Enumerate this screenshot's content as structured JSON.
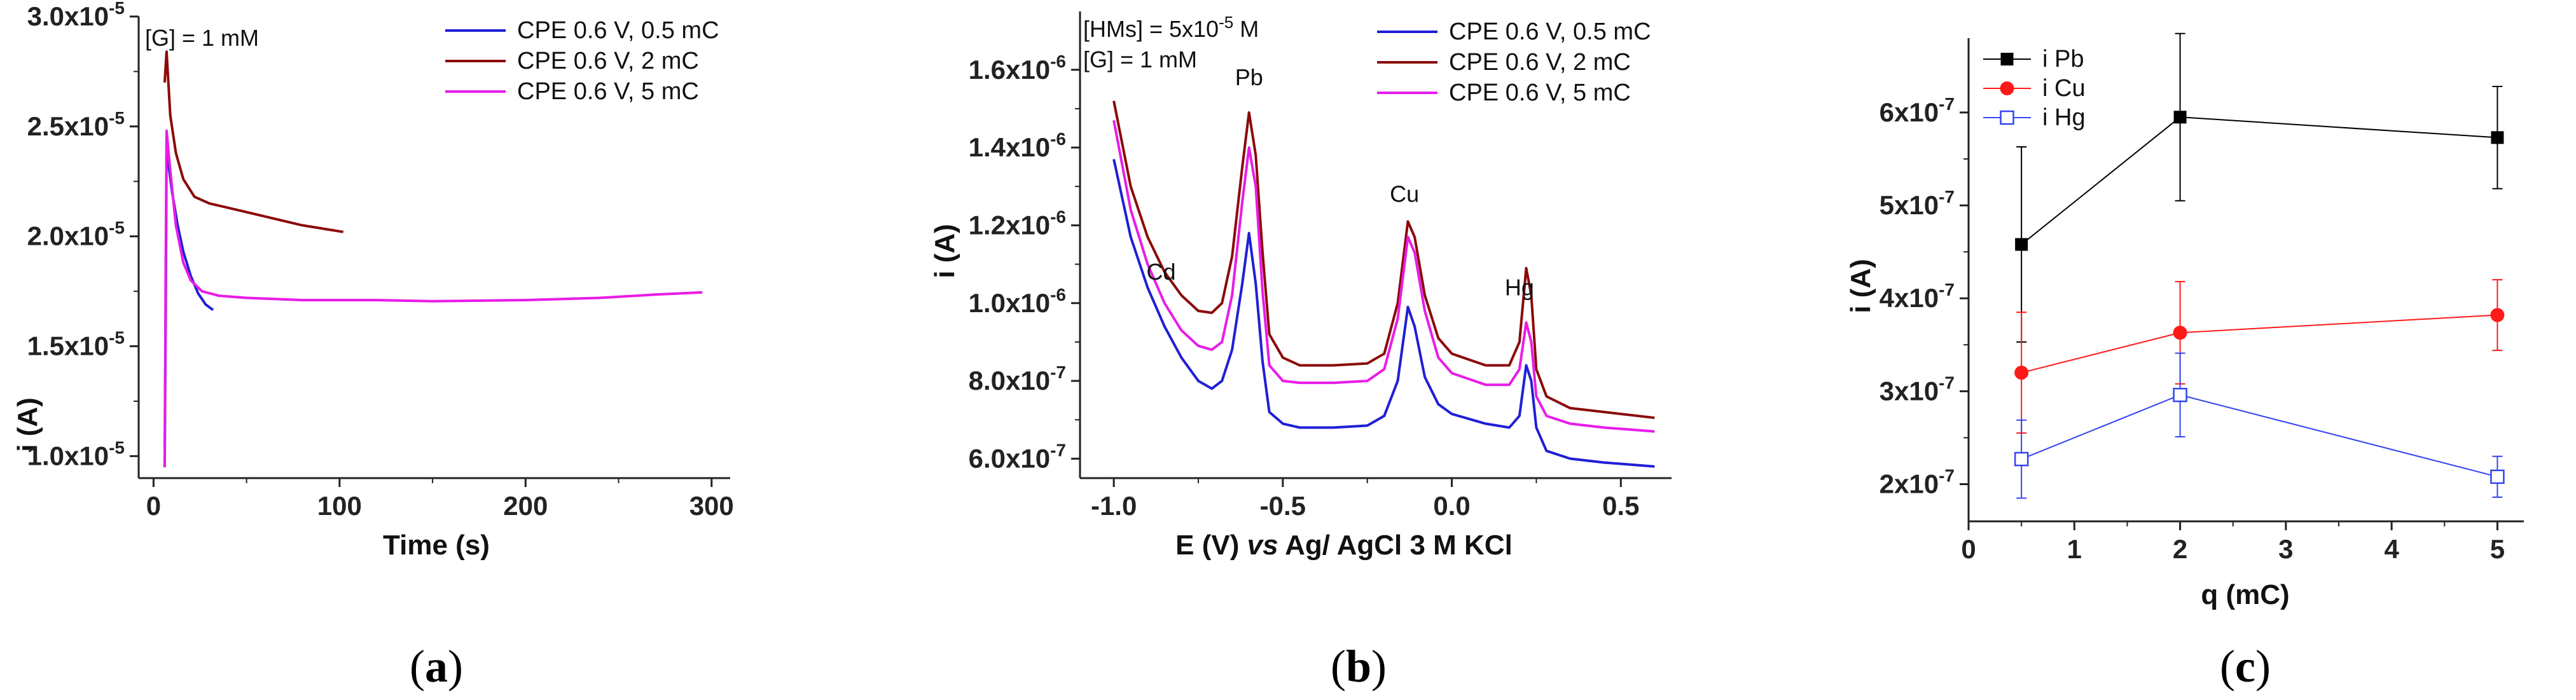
{
  "figure": {
    "panels": [
      {
        "label": "(a)",
        "letter": "a"
      },
      {
        "label": "(b)",
        "letter": "b"
      },
      {
        "label": "(c)",
        "letter": "c"
      }
    ]
  },
  "chart_data": [
    {
      "id": "a",
      "type": "line",
      "xlabel": "Time (s)",
      "ylabel": "i (A)",
      "annotation": "[G] = 1 mM",
      "xlim": [
        -8,
        310
      ],
      "ylim": [
        9e-06,
        3e-05
      ],
      "xticks": [
        {
          "v": 0,
          "t": "0"
        },
        {
          "v": 100,
          "t": "100"
        },
        {
          "v": 200,
          "t": "200"
        },
        {
          "v": 300,
          "t": "300"
        }
      ],
      "yticks": [
        {
          "v": 1e-05,
          "base": "1.0x10",
          "exp": "-5"
        },
        {
          "v": 1.5e-05,
          "base": "1.5x10",
          "exp": "-5"
        },
        {
          "v": 2e-05,
          "base": "2.0x10",
          "exp": "-5"
        },
        {
          "v": 2.5e-05,
          "base": "2.5x10",
          "exp": "-5"
        },
        {
          "v": 3e-05,
          "base": "3.0x10",
          "exp": "-5"
        }
      ],
      "legend_position": "top-right",
      "series": [
        {
          "name": "CPE 0.6 V, 0.5 mC",
          "color": "#1f1fd6",
          "points": [
            [
              6,
              9.5e-06
            ],
            [
              6.5,
              1.6e-05
            ],
            [
              7,
              2.4e-05
            ],
            [
              8,
              2.33e-05
            ],
            [
              10,
              2.2e-05
            ],
            [
              13,
              2.05e-05
            ],
            [
              16,
              1.93e-05
            ],
            [
              20,
              1.82e-05
            ],
            [
              24,
              1.74e-05
            ],
            [
              28,
              1.69e-05
            ],
            [
              32,
              1.665e-05
            ]
          ]
        },
        {
          "name": "CPE 0.6 V, 2 mC",
          "color": "#8b0a0a",
          "points": [
            [
              6,
              2.7e-05
            ],
            [
              7,
              2.84e-05
            ],
            [
              9,
              2.55e-05
            ],
            [
              12,
              2.38e-05
            ],
            [
              16,
              2.26e-05
            ],
            [
              22,
              2.18e-05
            ],
            [
              30,
              2.15e-05
            ],
            [
              45,
              2.12e-05
            ],
            [
              60,
              2.09e-05
            ],
            [
              80,
              2.05e-05
            ],
            [
              102,
              2.02e-05
            ]
          ]
        },
        {
          "name": "CPE 0.6 V, 5 mC",
          "color": "#e81ce8",
          "points": [
            [
              6,
              9.5e-06
            ],
            [
              6.5,
              1.8e-05
            ],
            [
              7,
              2.48e-05
            ],
            [
              9,
              2.3e-05
            ],
            [
              12,
              2.05e-05
            ],
            [
              16,
              1.88e-05
            ],
            [
              20,
              1.8e-05
            ],
            [
              26,
              1.75e-05
            ],
            [
              35,
              1.73e-05
            ],
            [
              50,
              1.72e-05
            ],
            [
              80,
              1.71e-05
            ],
            [
              120,
              1.71e-05
            ],
            [
              150,
              1.705e-05
            ],
            [
              200,
              1.71e-05
            ],
            [
              240,
              1.72e-05
            ],
            [
              270,
              1.735e-05
            ],
            [
              295,
              1.745e-05
            ]
          ]
        }
      ]
    },
    {
      "id": "b",
      "type": "line",
      "xlabel_parts": [
        "E (V) ",
        "vs",
        " Ag/ AgCl 3 M KCl"
      ],
      "ylabel": "i (A)",
      "annotation_lines": [
        {
          "pre": "[HMs] = 5x10",
          "exp": "-5",
          "post": " M"
        },
        {
          "pre": "[G] = 1 mM",
          "exp": "",
          "post": ""
        }
      ],
      "xlim": [
        -1.1,
        0.65
      ],
      "ylim": [
        5.5e-07,
        1.75e-06
      ],
      "xticks": [
        {
          "v": -1.0,
          "t": "-1.0"
        },
        {
          "v": -0.5,
          "t": "-0.5"
        },
        {
          "v": 0.0,
          "t": "0.0"
        },
        {
          "v": 0.5,
          "t": "0.5"
        }
      ],
      "yticks": [
        {
          "v": 6e-07,
          "base": "6.0x10",
          "exp": "-7"
        },
        {
          "v": 8e-07,
          "base": "8.0x10",
          "exp": "-7"
        },
        {
          "v": 1e-06,
          "base": "1.0x10",
          "exp": "-6"
        },
        {
          "v": 1.2e-06,
          "base": "1.2x10",
          "exp": "-6"
        },
        {
          "v": 1.4e-06,
          "base": "1.4x10",
          "exp": "-6"
        },
        {
          "v": 1.6e-06,
          "base": "1.6x10",
          "exp": "-6"
        }
      ],
      "peak_labels": [
        {
          "text": "Cd",
          "x": -0.86,
          "y": 1.06e-06
        },
        {
          "text": "Pb",
          "x": -0.6,
          "y": 1.56e-06
        },
        {
          "text": "Cu",
          "x": -0.14,
          "y": 1.26e-06
        },
        {
          "text": "Hg",
          "x": 0.2,
          "y": 1.02e-06
        }
      ],
      "legend_position": "top-right",
      "series": [
        {
          "name": "CPE 0.6 V, 0.5 mC",
          "color": "#1f1fd6",
          "points": [
            [
              -1.0,
              1.37e-06
            ],
            [
              -0.95,
              1.17e-06
            ],
            [
              -0.9,
              1.04e-06
            ],
            [
              -0.85,
              9.4e-07
            ],
            [
              -0.8,
              8.6e-07
            ],
            [
              -0.75,
              8e-07
            ],
            [
              -0.71,
              7.8e-07
            ],
            [
              -0.68,
              8e-07
            ],
            [
              -0.65,
              8.8e-07
            ],
            [
              -0.62,
              1.05e-06
            ],
            [
              -0.6,
              1.18e-06
            ],
            [
              -0.58,
              1.05e-06
            ],
            [
              -0.56,
              8.5e-07
            ],
            [
              -0.54,
              7.2e-07
            ],
            [
              -0.5,
              6.9e-07
            ],
            [
              -0.45,
              6.8e-07
            ],
            [
              -0.35,
              6.8e-07
            ],
            [
              -0.25,
              6.85e-07
            ],
            [
              -0.2,
              7.1e-07
            ],
            [
              -0.16,
              8e-07
            ],
            [
              -0.13,
              9.9e-07
            ],
            [
              -0.11,
              9.4e-07
            ],
            [
              -0.08,
              8.1e-07
            ],
            [
              -0.04,
              7.4e-07
            ],
            [
              0.0,
              7.15e-07
            ],
            [
              0.1,
              6.9e-07
            ],
            [
              0.17,
              6.8e-07
            ],
            [
              0.2,
              7.1e-07
            ],
            [
              0.22,
              8.4e-07
            ],
            [
              0.235,
              8e-07
            ],
            [
              0.25,
              6.8e-07
            ],
            [
              0.28,
              6.2e-07
            ],
            [
              0.35,
              6e-07
            ],
            [
              0.45,
              5.9e-07
            ],
            [
              0.6,
              5.8e-07
            ]
          ]
        },
        {
          "name": "CPE 0.6 V, 2 mC",
          "color": "#8b0a0a",
          "points": [
            [
              -1.0,
              1.52e-06
            ],
            [
              -0.95,
              1.3e-06
            ],
            [
              -0.9,
              1.17e-06
            ],
            [
              -0.85,
              1.08e-06
            ],
            [
              -0.8,
              1.02e-06
            ],
            [
              -0.75,
              9.8e-07
            ],
            [
              -0.71,
              9.75e-07
            ],
            [
              -0.68,
              1e-06
            ],
            [
              -0.65,
              1.12e-06
            ],
            [
              -0.62,
              1.35e-06
            ],
            [
              -0.6,
              1.49e-06
            ],
            [
              -0.58,
              1.38e-06
            ],
            [
              -0.56,
              1.13e-06
            ],
            [
              -0.54,
              9.2e-07
            ],
            [
              -0.5,
              8.6e-07
            ],
            [
              -0.45,
              8.4e-07
            ],
            [
              -0.35,
              8.4e-07
            ],
            [
              -0.25,
              8.45e-07
            ],
            [
              -0.2,
              8.7e-07
            ],
            [
              -0.16,
              1e-06
            ],
            [
              -0.13,
              1.21e-06
            ],
            [
              -0.11,
              1.17e-06
            ],
            [
              -0.08,
              1.02e-06
            ],
            [
              -0.04,
              9.1e-07
            ],
            [
              0.0,
              8.7e-07
            ],
            [
              0.1,
              8.4e-07
            ],
            [
              0.17,
              8.4e-07
            ],
            [
              0.2,
              9e-07
            ],
            [
              0.22,
              1.09e-06
            ],
            [
              0.235,
              1.02e-06
            ],
            [
              0.25,
              8.3e-07
            ],
            [
              0.28,
              7.6e-07
            ],
            [
              0.35,
              7.3e-07
            ],
            [
              0.45,
              7.2e-07
            ],
            [
              0.6,
              7.05e-07
            ]
          ]
        },
        {
          "name": "CPE 0.6 V, 5 mC",
          "color": "#e81ce8",
          "points": [
            [
              -1.0,
              1.47e-06
            ],
            [
              -0.95,
              1.24e-06
            ],
            [
              -0.9,
              1.1e-06
            ],
            [
              -0.85,
              1e-06
            ],
            [
              -0.8,
              9.3e-07
            ],
            [
              -0.75,
              8.9e-07
            ],
            [
              -0.71,
              8.8e-07
            ],
            [
              -0.68,
              9e-07
            ],
            [
              -0.65,
              1.02e-06
            ],
            [
              -0.62,
              1.26e-06
            ],
            [
              -0.6,
              1.4e-06
            ],
            [
              -0.58,
              1.3e-06
            ],
            [
              -0.56,
              1.03e-06
            ],
            [
              -0.54,
              8.4e-07
            ],
            [
              -0.5,
              8e-07
            ],
            [
              -0.45,
              7.95e-07
            ],
            [
              -0.35,
              7.95e-07
            ],
            [
              -0.25,
              8e-07
            ],
            [
              -0.2,
              8.3e-07
            ],
            [
              -0.16,
              9.6e-07
            ],
            [
              -0.13,
              1.17e-06
            ],
            [
              -0.11,
              1.13e-06
            ],
            [
              -0.08,
              9.8e-07
            ],
            [
              -0.04,
              8.6e-07
            ],
            [
              0.0,
              8.2e-07
            ],
            [
              0.1,
              7.9e-07
            ],
            [
              0.17,
              7.9e-07
            ],
            [
              0.2,
              8.3e-07
            ],
            [
              0.22,
              9.5e-07
            ],
            [
              0.235,
              9e-07
            ],
            [
              0.25,
              7.6e-07
            ],
            [
              0.28,
              7.1e-07
            ],
            [
              0.35,
              6.9e-07
            ],
            [
              0.45,
              6.8e-07
            ],
            [
              0.6,
              6.7e-07
            ]
          ]
        }
      ]
    },
    {
      "id": "c",
      "type": "scatter",
      "xlabel": "q (mC)",
      "ylabel": "i (A)",
      "xlim": [
        0,
        5.25
      ],
      "ylim": [
        1.6e-07,
        6.8e-07
      ],
      "xticks": [
        {
          "v": 0,
          "t": "0"
        },
        {
          "v": 1,
          "t": "1"
        },
        {
          "v": 2,
          "t": "2"
        },
        {
          "v": 3,
          "t": "3"
        },
        {
          "v": 4,
          "t": "4"
        },
        {
          "v": 5,
          "t": "5"
        }
      ],
      "yticks": [
        {
          "v": 2e-07,
          "base": "2x10",
          "exp": "-7"
        },
        {
          "v": 3e-07,
          "base": "3x10",
          "exp": "-7"
        },
        {
          "v": 4e-07,
          "base": "4x10",
          "exp": "-7"
        },
        {
          "v": 5e-07,
          "base": "5x10",
          "exp": "-7"
        },
        {
          "v": 6e-07,
          "base": "6x10",
          "exp": "-7"
        }
      ],
      "legend_position": "top-left",
      "series": [
        {
          "name": "i Pb",
          "color": "#000000",
          "marker": "square-filled",
          "points": [
            {
              "x": 0.5,
              "y": 4.58e-07,
              "err": 1.05e-07
            },
            {
              "x": 2,
              "y": 5.95e-07,
              "err": 9e-08
            },
            {
              "x": 5,
              "y": 5.73e-07,
              "err": 5.5e-08
            }
          ]
        },
        {
          "name": "i Cu",
          "color": "#ff1a1a",
          "marker": "circle-filled",
          "points": [
            {
              "x": 0.5,
              "y": 3.2e-07,
              "err": 6.5e-08
            },
            {
              "x": 2,
              "y": 3.63e-07,
              "err": 5.5e-08
            },
            {
              "x": 5,
              "y": 3.82e-07,
              "err": 3.8e-08
            }
          ]
        },
        {
          "name": "i Hg",
          "color": "#3344ee",
          "marker": "square-open",
          "points": [
            {
              "x": 0.5,
              "y": 2.27e-07,
              "err": 4.2e-08
            },
            {
              "x": 2,
              "y": 2.96e-07,
              "err": 4.5e-08
            },
            {
              "x": 5,
              "y": 2.08e-07,
              "err": 2.2e-08
            }
          ]
        }
      ]
    }
  ]
}
